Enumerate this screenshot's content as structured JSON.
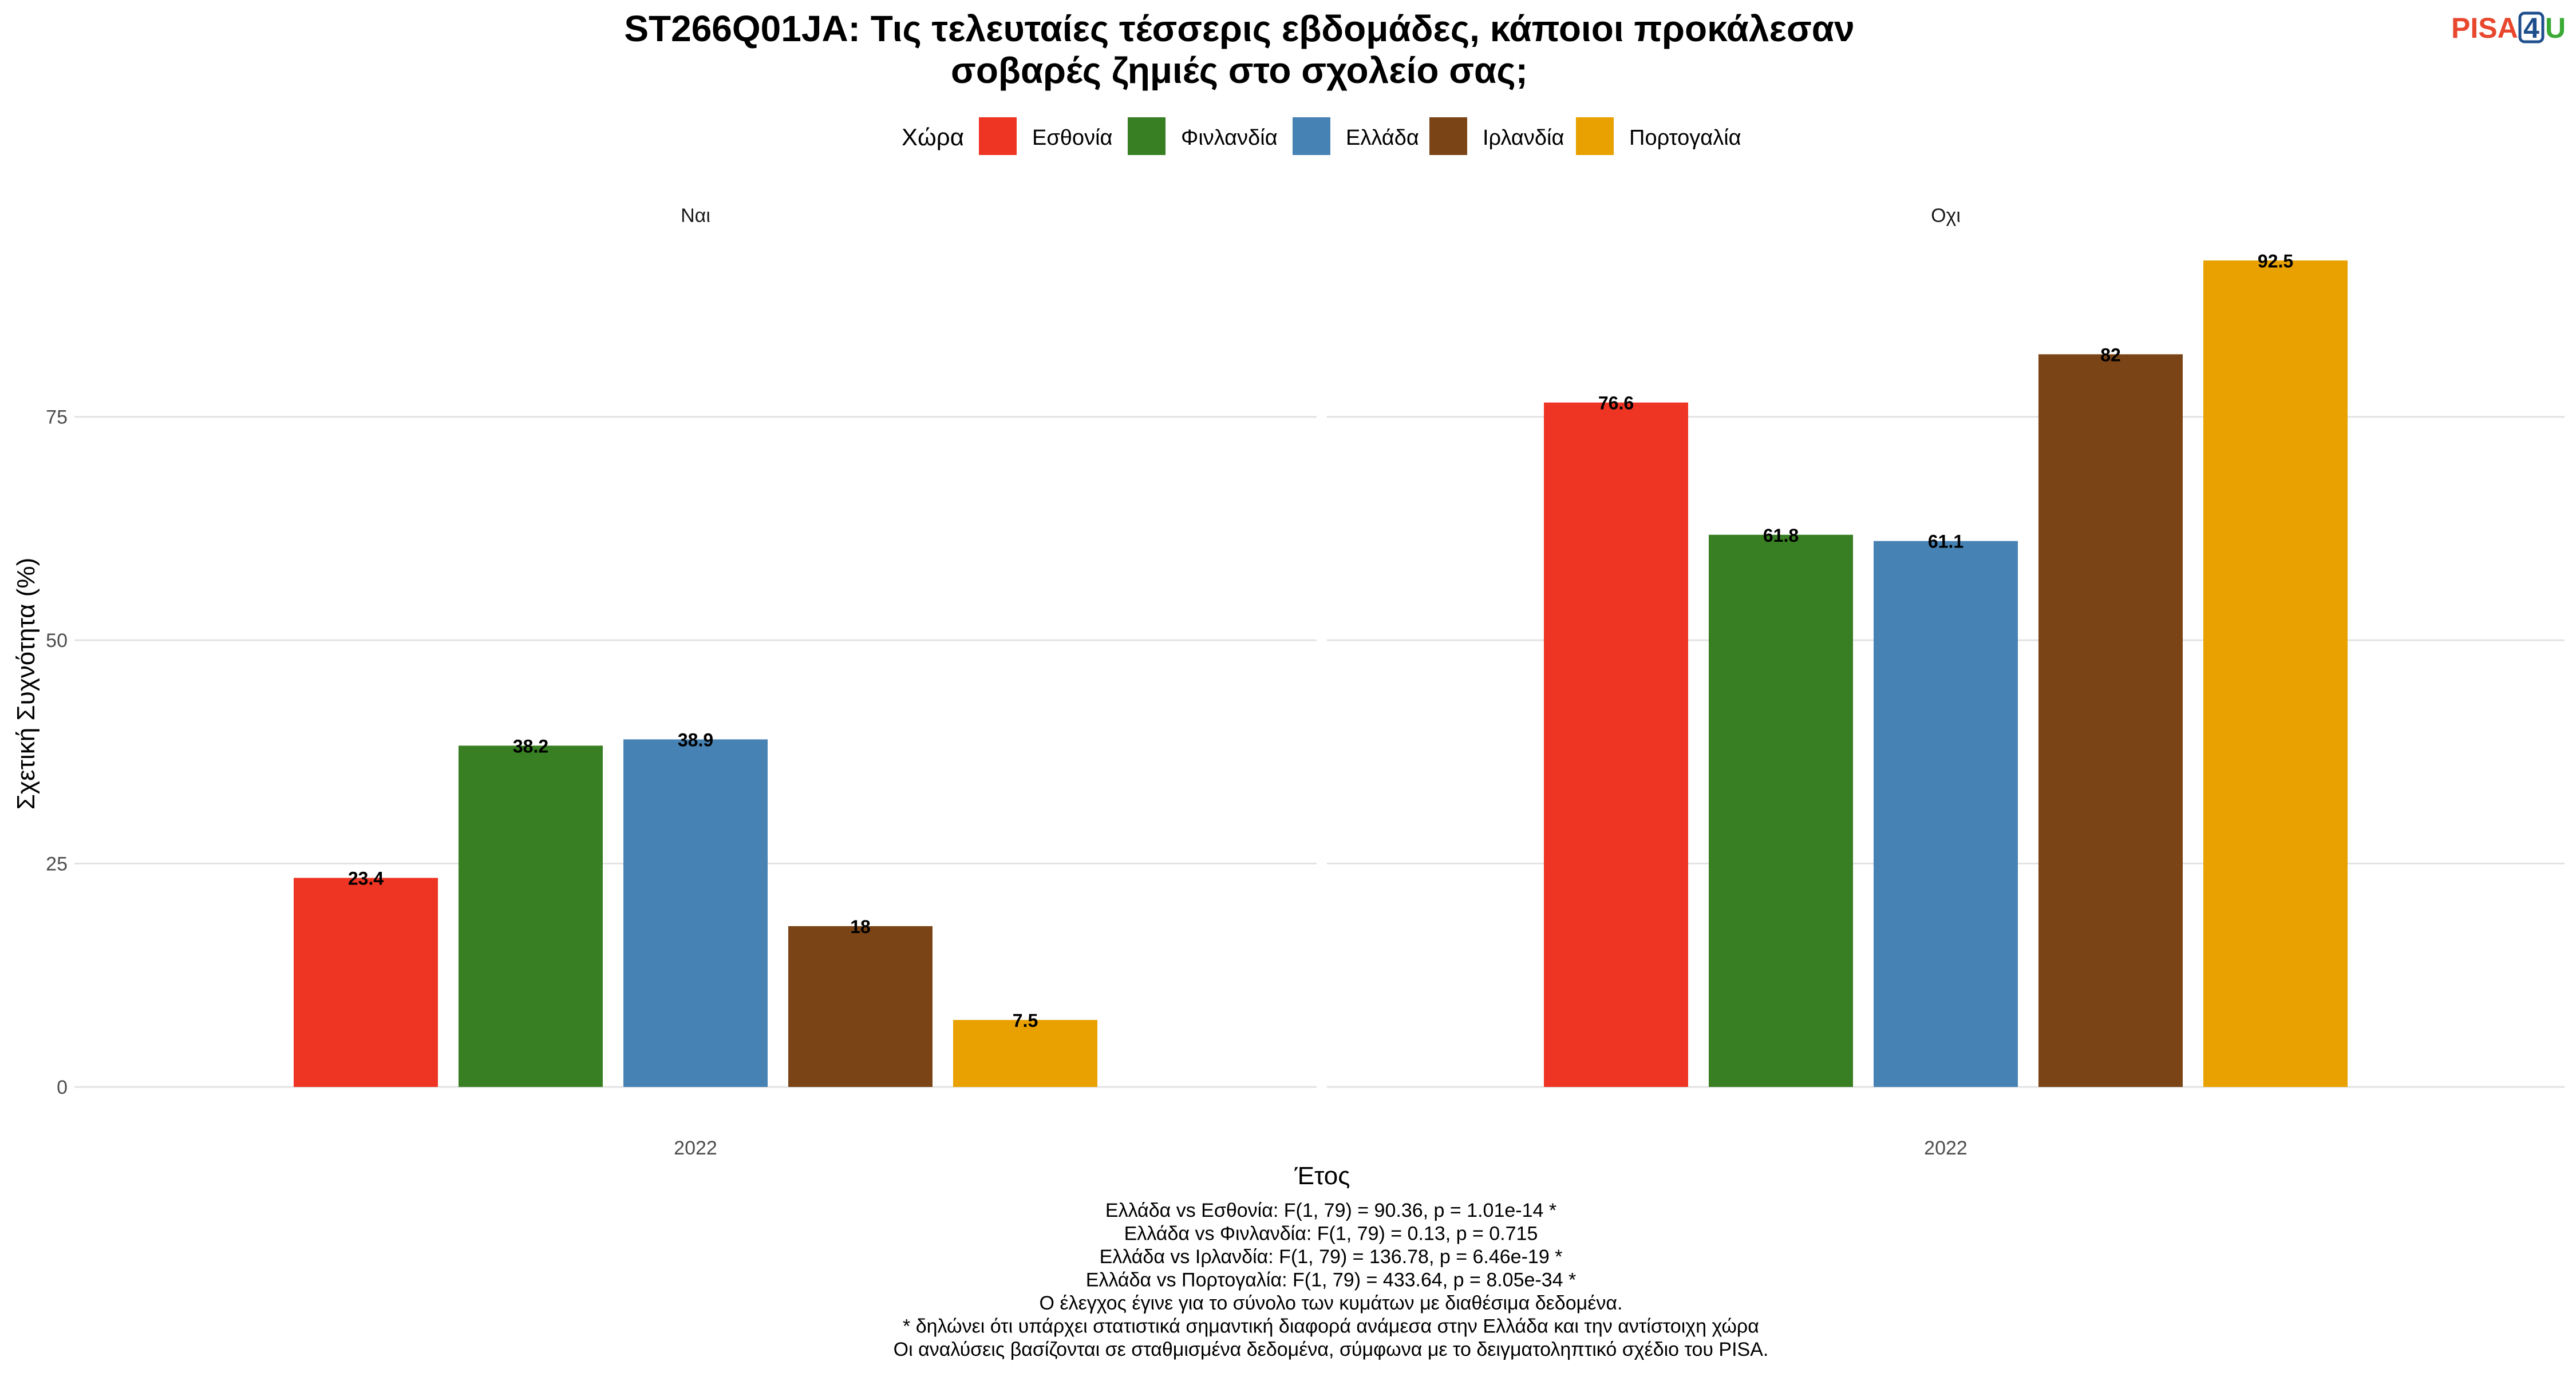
{
  "chart_data": {
    "type": "bar",
    "title_lines": [
      "ST266Q01JA: Τις τελευταίες τέσσερις εβδομάδες, κάποιοι προκάλεσαν",
      "σοβαρές ζημιές στο σχολείο σας;"
    ],
    "legend": {
      "title": "Χώρα",
      "placement": "top"
    },
    "colors": {
      "Εσθονία": "#EE3524",
      "Φινλανδία": "#387F23",
      "Ελλάδα": "#4682B4",
      "Ιρλανδία": "#7A4416",
      "Πορτογαλία": "#E8A100"
    },
    "series": [
      {
        "name": "Εσθονία"
      },
      {
        "name": "Φινλανδία"
      },
      {
        "name": "Ελλάδα"
      },
      {
        "name": "Ιρλανδία"
      },
      {
        "name": "Πορτογαλία"
      }
    ],
    "facets": [
      {
        "label": "Ναι",
        "category": "2022",
        "values": [
          23.4,
          38.2,
          38.9,
          18,
          7.5
        ]
      },
      {
        "label": "Οχι",
        "category": "2022",
        "values": [
          76.6,
          61.8,
          61.1,
          82,
          92.5
        ]
      }
    ],
    "xlabel": "Έτος",
    "ylabel": "Σχετική Συχνότητα (%)",
    "ylim": [
      0,
      97
    ],
    "yticks": [
      0,
      25,
      50,
      75
    ],
    "grid": true,
    "caption_lines": [
      "Ελλάδα vs Εσθονία: F(1, 79) = 90.36, p = 1.01e-14 *",
      "Ελλάδα vs Φινλανδία: F(1, 79) = 0.13, p = 0.715",
      "Ελλάδα vs Ιρλανδία: F(1, 79) = 136.78, p = 6.46e-19 *",
      "Ελλάδα vs Πορτογαλία: F(1, 79) = 433.64, p = 8.05e-34 *",
      "Ο έλεγχος έγινε για το σύνολο των κυμάτων με διαθέσιμα δεδομένα.",
      "* δηλώνει ότι υπάρχει στατιστικά σημαντική διαφορά ανάμεσα στην Ελλάδα και την αντίστοιχη χώρα",
      "Οι αναλύσεις βασίζονται σε σταθμισμένα δεδομένα, σύμφωνα με το δειγματοληπτικό σχέδιο του PISA."
    ]
  },
  "logo": {
    "text_a": "PISA",
    "text_b": "4",
    "text_c": "U",
    "color_a": "#E8472E",
    "color_b": "#1F4E8C",
    "color_c": "#3AAA35"
  }
}
